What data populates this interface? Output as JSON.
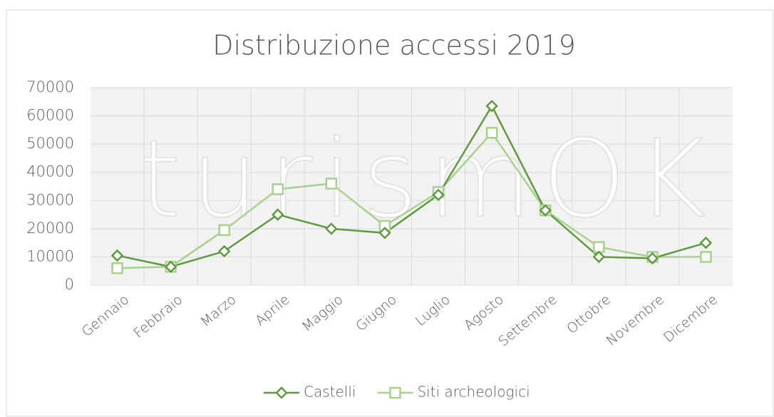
{
  "chart_data": {
    "type": "line",
    "title": "Distribuzione accessi 2019",
    "watermark": "turismOK",
    "categories": [
      "Gennaio",
      "Febbraio",
      "Marzo",
      "Aprile",
      "Maggio",
      "Giugno",
      "Luglio",
      "Agosto",
      "Settembre",
      "Ottobre",
      "Novembre",
      "Dicembre"
    ],
    "series": [
      {
        "name": "Castelli",
        "color": "#5e9a3f",
        "marker": "diamond",
        "values": [
          10500,
          6500,
          12000,
          25000,
          20000,
          18500,
          32000,
          63500,
          26500,
          10000,
          9500,
          15000
        ]
      },
      {
        "name": "Siti archeologici",
        "color": "#a9d18e",
        "marker": "square",
        "values": [
          6000,
          6500,
          19500,
          34000,
          36000,
          21000,
          33000,
          54000,
          26500,
          13500,
          10000,
          10000
        ]
      }
    ],
    "ylim": [
      0,
      70000
    ],
    "yticks": [
      0,
      10000,
      20000,
      30000,
      40000,
      50000,
      60000,
      70000
    ],
    "grid": true,
    "legend": "bottom"
  }
}
